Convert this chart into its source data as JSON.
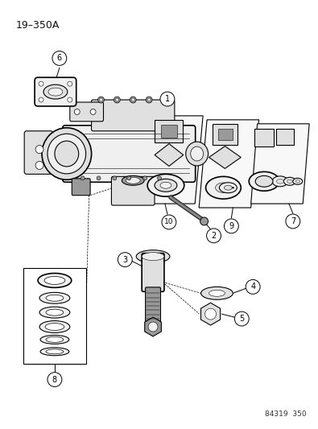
{
  "title": "19–350A",
  "footer": "84319  350",
  "background_color": "#ffffff",
  "fig_width": 3.95,
  "fig_height": 5.33,
  "dpi": 100,
  "title_fontsize": 9,
  "footer_fontsize": 6.5,
  "label_fontsize": 7
}
